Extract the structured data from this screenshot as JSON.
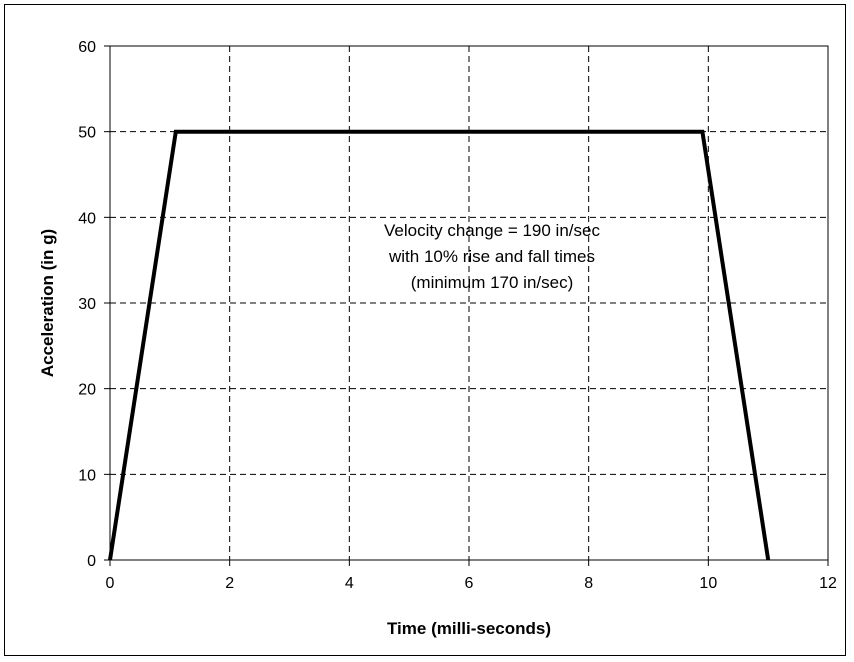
{
  "chart_data": {
    "type": "line",
    "title": "",
    "xlabel": "Time (milli-seconds)",
    "ylabel": "Acceleration (in g)",
    "xlim": [
      0,
      12
    ],
    "ylim": [
      0,
      60
    ],
    "x_ticks": [
      "0",
      "2",
      "4",
      "6",
      "8",
      "10",
      "12"
    ],
    "y_ticks": [
      "0",
      "10",
      "20",
      "30",
      "40",
      "50",
      "60"
    ],
    "grid": true,
    "grid_style": "dashed",
    "legend": "none",
    "series": [
      {
        "color": "#000000",
        "points": [
          {
            "x": 0,
            "y": 0
          },
          {
            "x": 1.1,
            "y": 50
          },
          {
            "x": 9.9,
            "y": 50
          },
          {
            "x": 11,
            "y": 0
          }
        ]
      }
    ],
    "annotations": [
      "Velocity change = 190 in/sec",
      "with 10% rise and fall times",
      "(minimum 170 in/sec)"
    ]
  }
}
